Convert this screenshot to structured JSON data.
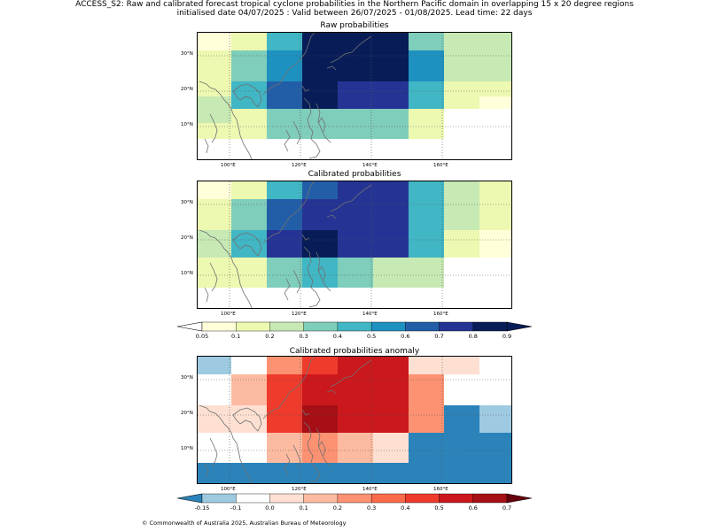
{
  "header": {
    "line1": "ACCESS_S2: Raw and calibrated forecast tropical cyclone probabilities in the Northern Pacific domain in overlapping 15 x 20 degree regions",
    "line2": "initialised date 04/07/2025 :  Valid between 26/07/2025 - 01/08/2025. Lead time: 22 days"
  },
  "axes": {
    "lon_ticks": [
      "100°E",
      "120°E",
      "140°E",
      "160°E"
    ],
    "lat_ticks": [
      "30°N",
      "20°N",
      "10°N"
    ]
  },
  "colors": {
    "prob_levels": [
      "#ffffd9",
      "#edf8b1",
      "#c7e9b4",
      "#7fcdbb",
      "#41b6c4",
      "#1d91c0",
      "#225ea8",
      "#253494",
      "#081d58"
    ],
    "prob_under": "#ffffff",
    "anom_levels": [
      "#2b83ba",
      "#9ecae1",
      "#ffffff",
      "#fee0d2",
      "#fcbba1",
      "#fc9272",
      "#fb6a4a",
      "#ef3b2c",
      "#cb181d",
      "#a50f15",
      "#67000d"
    ]
  },
  "chart_data": [
    {
      "type": "heatmap",
      "title": "Raw probabilities",
      "cols": 9,
      "rows": 9,
      "grid": [
        [
          0,
          1,
          4,
          8,
          8,
          8,
          3,
          2,
          2
        ],
        [
          1,
          3,
          5,
          8,
          8,
          8,
          5,
          2,
          2
        ],
        [
          1,
          3,
          5,
          8,
          8,
          8,
          5,
          2,
          2
        ],
        [
          1,
          4,
          6,
          8,
          7,
          7,
          4,
          1,
          1
        ],
        [
          2,
          4,
          6,
          8,
          7,
          7,
          4,
          1,
          0
        ],
        [
          2,
          1,
          3,
          3,
          3,
          3,
          1,
          -1,
          -1
        ],
        [
          1,
          1,
          3,
          3,
          3,
          3,
          1,
          -1,
          -1
        ],
        [
          -1,
          -1,
          -1,
          -1,
          -1,
          -1,
          -1,
          -1,
          -1
        ],
        [
          -1,
          -1,
          -1,
          -1,
          -1,
          -1,
          -1,
          -1,
          -1
        ]
      ]
    },
    {
      "type": "heatmap",
      "title": "Calibrated probabilities",
      "cols": 9,
      "rows": 9,
      "grid": [
        [
          0,
          1,
          4,
          6,
          7,
          7,
          4,
          2,
          1
        ],
        [
          1,
          3,
          6,
          7,
          7,
          7,
          4,
          2,
          1
        ],
        [
          1,
          3,
          6,
          7,
          7,
          7,
          4,
          2,
          1
        ],
        [
          2,
          4,
          7,
          8,
          7,
          7,
          4,
          1,
          0
        ],
        [
          2,
          4,
          7,
          8,
          7,
          7,
          4,
          1,
          0
        ],
        [
          1,
          1,
          3,
          4,
          3,
          2,
          2,
          -1,
          -1
        ],
        [
          1,
          1,
          3,
          4,
          3,
          2,
          2,
          -1,
          -1
        ],
        [
          -1,
          -1,
          -1,
          -1,
          -1,
          -1,
          -1,
          -1,
          -1
        ],
        [
          -1,
          -1,
          -1,
          -1,
          -1,
          -1,
          -1,
          -1,
          -1
        ]
      ]
    },
    {
      "type": "heatmap",
      "title": "Calibrated probabilities anomaly",
      "cols": 9,
      "rows": 9,
      "grid": [
        [
          1,
          2,
          5,
          7,
          8,
          8,
          3,
          3,
          2
        ],
        [
          2,
          4,
          7,
          8,
          8,
          8,
          5,
          2,
          2
        ],
        [
          2,
          4,
          7,
          8,
          8,
          8,
          5,
          2,
          2
        ],
        [
          3,
          3,
          7,
          9,
          8,
          8,
          5,
          0,
          1
        ],
        [
          3,
          3,
          7,
          9,
          8,
          8,
          5,
          0,
          1
        ],
        [
          2,
          2,
          4,
          5,
          4,
          3,
          0,
          0,
          0
        ],
        [
          2,
          2,
          4,
          5,
          4,
          3,
          0,
          0,
          0
        ],
        [
          0,
          0,
          0,
          0,
          0,
          0,
          0,
          0,
          0
        ],
        [
          0,
          0,
          0,
          0,
          0,
          0,
          0,
          0,
          0
        ]
      ]
    }
  ],
  "colorbars": {
    "prob": {
      "ticks": [
        "0.05",
        "0.1",
        "0.2",
        "0.3",
        "0.4",
        "0.5",
        "0.6",
        "0.7",
        "0.8",
        "0.9"
      ]
    },
    "anom": {
      "ticks": [
        "-0.15",
        "-0.1",
        "0.0",
        "0.1",
        "0.2",
        "0.3",
        "0.4",
        "0.5",
        "0.6",
        "0.7"
      ]
    }
  },
  "footer": {
    "text": "© Commonwealth of Australia 2025, Australian Bureau of Meteorology"
  }
}
